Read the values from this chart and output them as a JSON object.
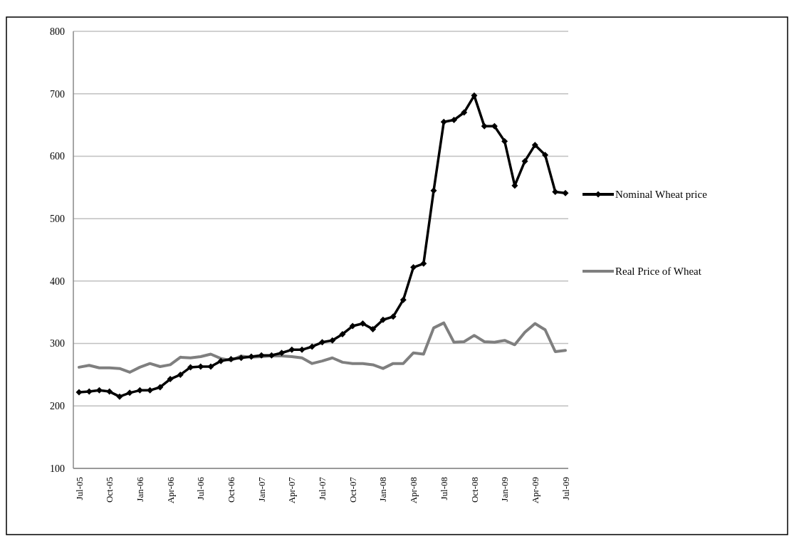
{
  "chart_data": {
    "type": "line",
    "categories": [
      "Jul-05",
      null,
      null,
      "Oct-05",
      null,
      null,
      "Jan-06",
      null,
      null,
      "Apr-06",
      null,
      null,
      "Jul-06",
      null,
      null,
      "Oct-06",
      null,
      null,
      "Jan-07",
      null,
      null,
      "Apr-07",
      null,
      null,
      "Jul-07",
      null,
      null,
      "Oct-07",
      null,
      null,
      "Jan-08",
      null,
      null,
      "Apr-08",
      null,
      null,
      "Jul-08",
      null,
      null,
      "Oct-08",
      null,
      null,
      "Jan-09",
      null,
      null,
      "Apr-09",
      null,
      null,
      "Jul-09"
    ],
    "series": [
      {
        "name": "Nominal Wheat price",
        "color": "#000000",
        "marker": "diamond",
        "values": [
          222,
          223,
          225,
          223,
          215,
          221,
          225,
          225,
          230,
          243,
          250,
          262,
          263,
          263,
          272,
          275,
          277,
          279,
          281,
          281,
          285,
          290,
          290,
          295,
          302,
          305,
          315,
          328,
          332,
          323,
          338,
          343,
          370,
          422,
          428,
          545,
          655,
          658,
          670,
          697,
          648,
          648,
          624,
          553,
          592,
          618,
          602,
          543,
          541
        ]
      },
      {
        "name": "Real Price of Wheat",
        "color": "#7f7f7f",
        "marker": "none",
        "values": [
          262,
          265,
          261,
          261,
          260,
          254,
          262,
          268,
          263,
          266,
          278,
          277,
          279,
          283,
          276,
          273,
          280,
          278,
          279,
          280,
          280,
          279,
          277,
          268,
          272,
          277,
          270,
          268,
          268,
          266,
          260,
          268,
          268,
          285,
          283,
          325,
          333,
          302,
          303,
          313,
          303,
          302,
          305,
          298,
          318,
          332,
          322,
          287,
          289
        ]
      }
    ],
    "ylim": [
      100,
      800
    ],
    "yticks": [
      100,
      200,
      300,
      400,
      500,
      600,
      700,
      800
    ],
    "grid": "y",
    "legend": "right",
    "line_style": "solid"
  }
}
